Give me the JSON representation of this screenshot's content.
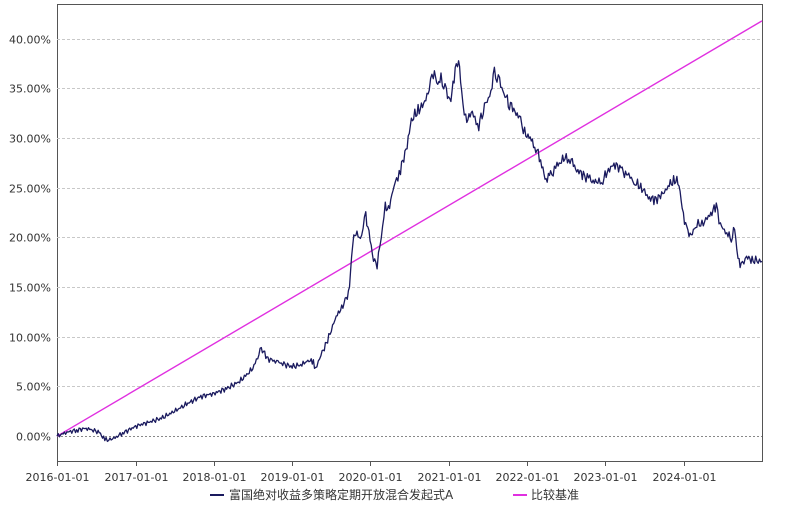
{
  "chart_data": {
    "type": "line",
    "title": "",
    "xlabel": "",
    "ylabel": "",
    "ylim": [
      -0.025,
      0.435
    ],
    "xlim": [
      "2015-12-31",
      "2024-12-31"
    ],
    "grid": true,
    "legend_position": "bottom-center",
    "y_ticks": [
      "0.00%",
      "5.00%",
      "10.00%",
      "15.00%",
      "20.00%",
      "25.00%",
      "30.00%",
      "35.00%",
      "40.00%"
    ],
    "y_tick_values": [
      0,
      0.05,
      0.1,
      0.15,
      0.2,
      0.25,
      0.3,
      0.35,
      0.4
    ],
    "x_ticks": [
      "2016-01-01",
      "2017-01-01",
      "2018-01-01",
      "2019-01-01",
      "2020-01-01",
      "2021-01-01",
      "2022-01-01",
      "2023-01-01",
      "2024-01-01"
    ],
    "series": [
      {
        "name": "富国绝对收益多策略定期开放混合发起式A",
        "color": "#1a1a5e",
        "points": [
          [
            "2015-12-31",
            0.0
          ],
          [
            "2016-02-15",
            0.004
          ],
          [
            "2016-04-01",
            0.006
          ],
          [
            "2016-05-15",
            0.008
          ],
          [
            "2016-07-15",
            0.004
          ],
          [
            "2016-08-10",
            -0.004
          ],
          [
            "2016-09-15",
            -0.003
          ],
          [
            "2016-11-01",
            0.003
          ],
          [
            "2017-01-01",
            0.01
          ],
          [
            "2017-03-01",
            0.014
          ],
          [
            "2017-05-01",
            0.018
          ],
          [
            "2017-07-01",
            0.025
          ],
          [
            "2017-09-01",
            0.033
          ],
          [
            "2017-11-01",
            0.04
          ],
          [
            "2018-01-01",
            0.043
          ],
          [
            "2018-03-01",
            0.048
          ],
          [
            "2018-05-01",
            0.055
          ],
          [
            "2018-07-01",
            0.068
          ],
          [
            "2018-08-10",
            0.088
          ],
          [
            "2018-09-10",
            0.078
          ],
          [
            "2018-11-01",
            0.074
          ],
          [
            "2019-01-01",
            0.07
          ],
          [
            "2019-02-15",
            0.072
          ],
          [
            "2019-03-15",
            0.076
          ],
          [
            "2019-04-10",
            0.075
          ],
          [
            "2019-04-20",
            0.068
          ],
          [
            "2019-05-15",
            0.082
          ],
          [
            "2019-06-15",
            0.096
          ],
          [
            "2019-07-20",
            0.118
          ],
          [
            "2019-08-20",
            0.13
          ],
          [
            "2019-09-10",
            0.137
          ],
          [
            "2019-09-25",
            0.15
          ],
          [
            "2019-10-10",
            0.195
          ],
          [
            "2019-10-25",
            0.205
          ],
          [
            "2019-11-15",
            0.198
          ],
          [
            "2019-12-10",
            0.222
          ],
          [
            "2019-12-25",
            0.205
          ],
          [
            "2020-01-15",
            0.178
          ],
          [
            "2020-02-01",
            0.172
          ],
          [
            "2020-02-20",
            0.2
          ],
          [
            "2020-03-10",
            0.232
          ],
          [
            "2020-03-25",
            0.228
          ],
          [
            "2020-04-20",
            0.252
          ],
          [
            "2020-05-20",
            0.268
          ],
          [
            "2020-06-20",
            0.293
          ],
          [
            "2020-07-10",
            0.318
          ],
          [
            "2020-08-10",
            0.328
          ],
          [
            "2020-09-10",
            0.335
          ],
          [
            "2020-10-01",
            0.352
          ],
          [
            "2020-10-20",
            0.366
          ],
          [
            "2020-11-10",
            0.355
          ],
          [
            "2020-11-25",
            0.36
          ],
          [
            "2020-12-20",
            0.345
          ],
          [
            "2021-01-10",
            0.338
          ],
          [
            "2021-01-25",
            0.362
          ],
          [
            "2021-02-15",
            0.382
          ],
          [
            "2021-03-01",
            0.345
          ],
          [
            "2021-03-20",
            0.318
          ],
          [
            "2021-04-20",
            0.325
          ],
          [
            "2021-05-20",
            0.312
          ],
          [
            "2021-06-10",
            0.33
          ],
          [
            "2021-07-10",
            0.342
          ],
          [
            "2021-08-01",
            0.365
          ],
          [
            "2021-08-25",
            0.356
          ],
          [
            "2021-09-20",
            0.343
          ],
          [
            "2021-10-10",
            0.335
          ],
          [
            "2021-11-10",
            0.326
          ],
          [
            "2021-12-01",
            0.318
          ],
          [
            "2021-12-20",
            0.305
          ],
          [
            "2022-01-15",
            0.3
          ],
          [
            "2022-02-10",
            0.29
          ],
          [
            "2022-03-10",
            0.275
          ],
          [
            "2022-03-25",
            0.258
          ],
          [
            "2022-04-20",
            0.262
          ],
          [
            "2022-05-20",
            0.272
          ],
          [
            "2022-06-20",
            0.279
          ],
          [
            "2022-07-20",
            0.28
          ],
          [
            "2022-08-20",
            0.268
          ],
          [
            "2022-09-20",
            0.263
          ],
          [
            "2022-10-20",
            0.258
          ],
          [
            "2022-11-20",
            0.255
          ],
          [
            "2022-12-20",
            0.258
          ],
          [
            "2023-01-20",
            0.27
          ],
          [
            "2023-02-20",
            0.274
          ],
          [
            "2023-03-20",
            0.266
          ],
          [
            "2023-04-20",
            0.262
          ],
          [
            "2023-05-20",
            0.255
          ],
          [
            "2023-06-20",
            0.25
          ],
          [
            "2023-07-20",
            0.24
          ],
          [
            "2023-08-20",
            0.238
          ],
          [
            "2023-09-20",
            0.242
          ],
          [
            "2023-10-20",
            0.252
          ],
          [
            "2023-11-20",
            0.258
          ],
          [
            "2023-12-10",
            0.255
          ],
          [
            "2023-12-25",
            0.228
          ],
          [
            "2024-01-15",
            0.208
          ],
          [
            "2024-02-05",
            0.201
          ],
          [
            "2024-02-25",
            0.212
          ],
          [
            "2024-04-01",
            0.215
          ],
          [
            "2024-05-01",
            0.222
          ],
          [
            "2024-06-01",
            0.232
          ],
          [
            "2024-06-20",
            0.212
          ],
          [
            "2024-07-20",
            0.205
          ],
          [
            "2024-08-10",
            0.198
          ],
          [
            "2024-08-25",
            0.21
          ],
          [
            "2024-09-10",
            0.178
          ],
          [
            "2024-09-25",
            0.172
          ],
          [
            "2024-10-20",
            0.18
          ],
          [
            "2024-11-20",
            0.177
          ],
          [
            "2024-12-31",
            0.176
          ]
        ]
      },
      {
        "name": "比较基准",
        "color": "#e030e0",
        "points": [
          [
            "2015-12-31",
            0.0
          ],
          [
            "2024-12-31",
            0.418
          ]
        ]
      }
    ]
  }
}
